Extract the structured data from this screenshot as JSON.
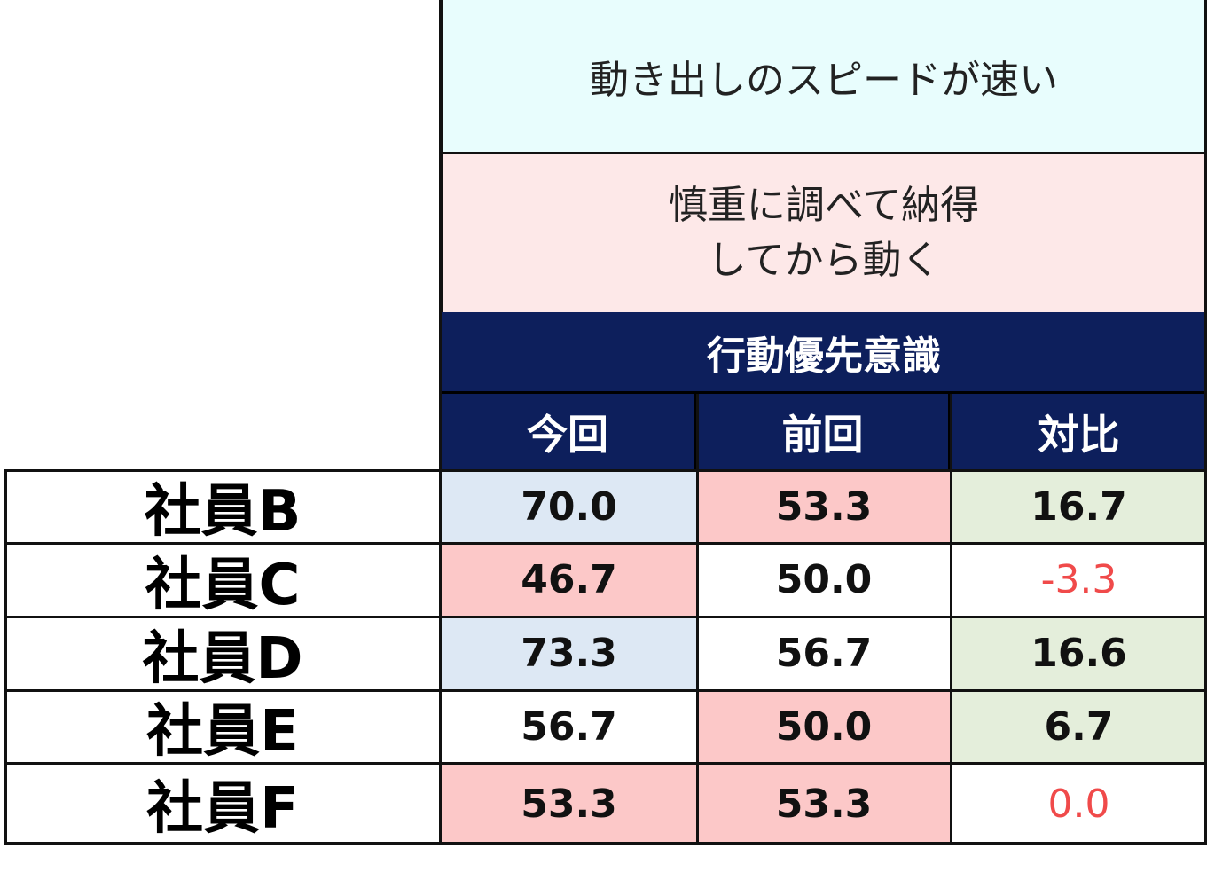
{
  "description": {
    "top": "動き出しのスピードが速い",
    "bottom_line1": "慎重に調べて納得",
    "bottom_line2": "してから動く"
  },
  "table": {
    "title": "行動優先意識",
    "columns": [
      "今回",
      "前回",
      "対比"
    ],
    "rows": [
      {
        "label": "社員B",
        "current": "70.0",
        "previous": "53.3",
        "diff": "16.7"
      },
      {
        "label": "社員C",
        "current": "46.7",
        "previous": "50.0",
        "diff": "-3.3"
      },
      {
        "label": "社員D",
        "current": "73.3",
        "previous": "56.7",
        "diff": "16.6"
      },
      {
        "label": "社員E",
        "current": "56.7",
        "previous": "50.0",
        "diff": "6.7"
      },
      {
        "label": "社員F",
        "current": "53.3",
        "previous": "53.3",
        "diff": "0.0"
      }
    ]
  },
  "colors": {
    "navy_header": "#0d1f5c",
    "fill_blue": "#dde8f4",
    "fill_pink": "#fcc8c8",
    "fill_green": "#e4eedb",
    "negative_text": "#f04a4a"
  }
}
